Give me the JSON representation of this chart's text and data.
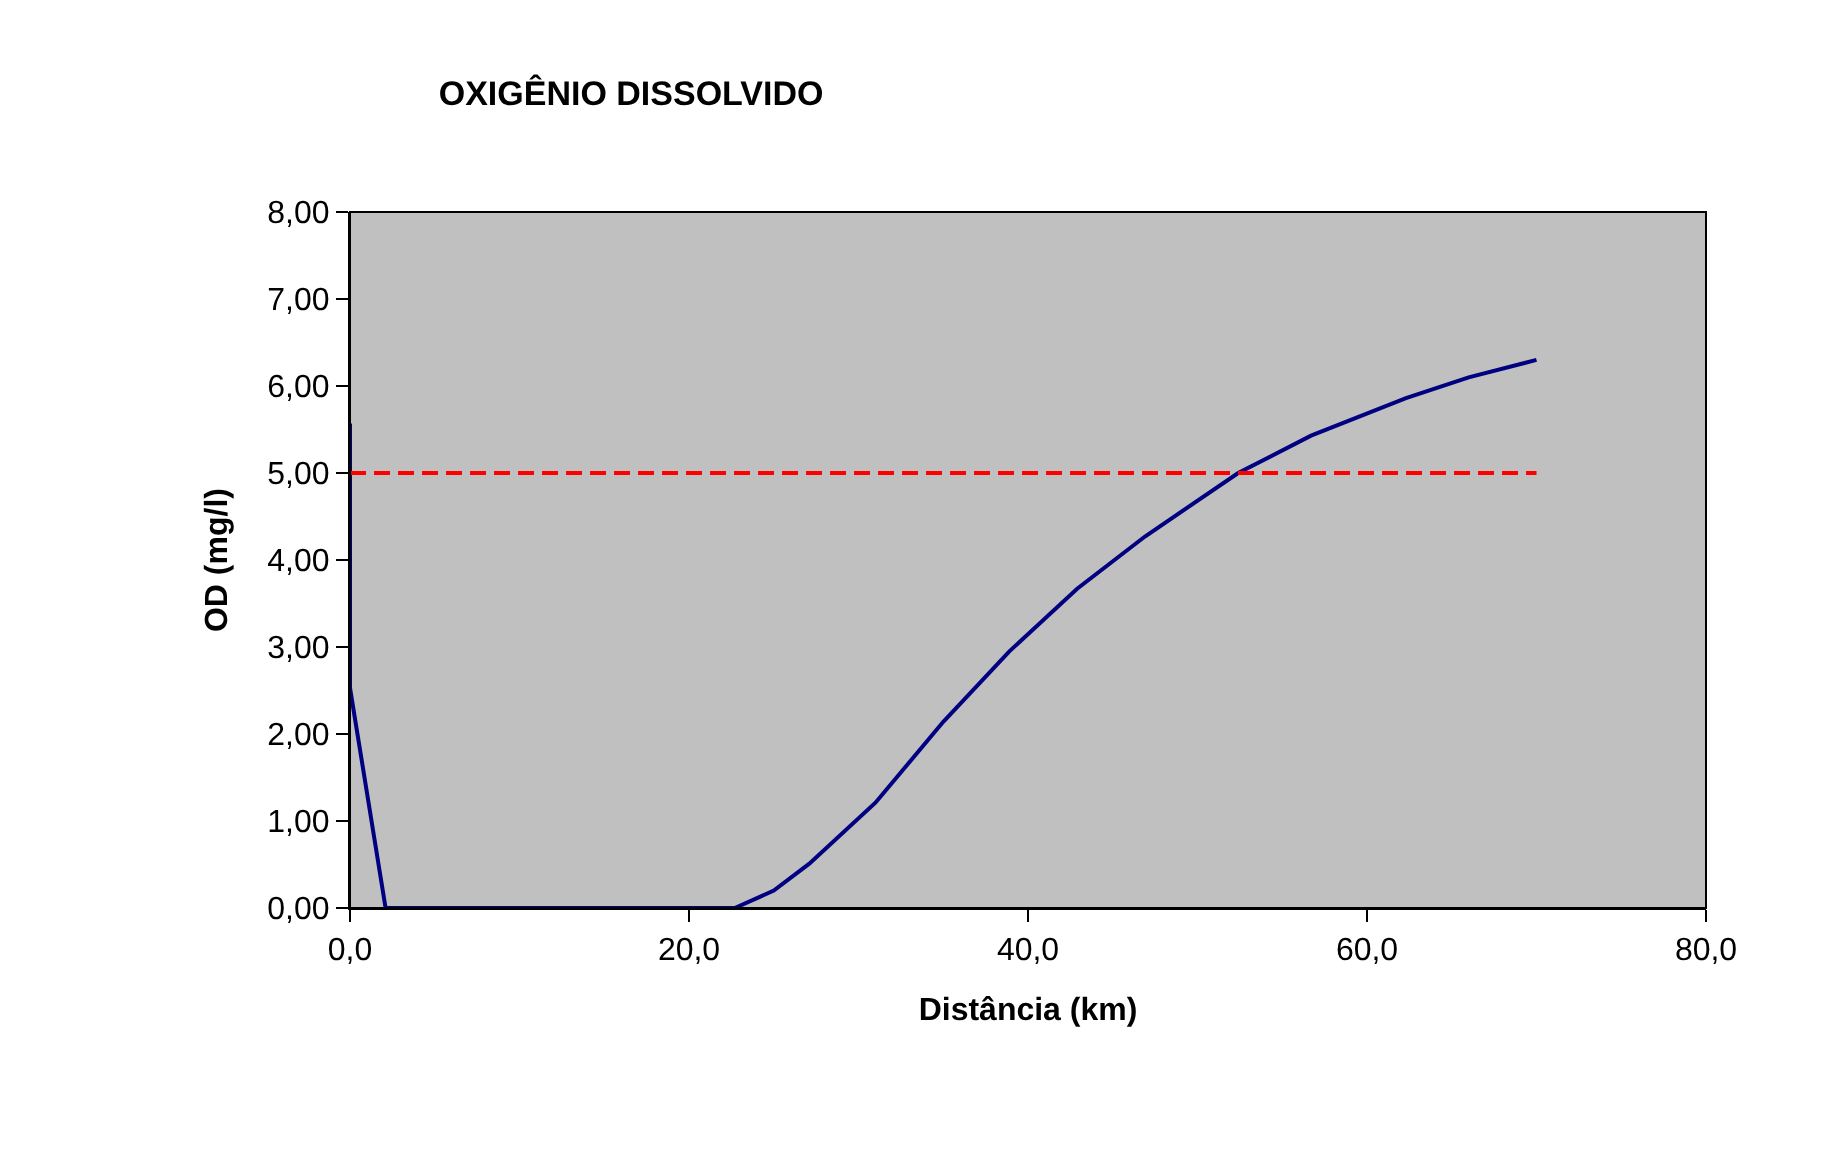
{
  "chart_data": {
    "type": "line",
    "title": "OXIGÊNIO DISSOLVIDO",
    "xlabel": "Distância (km)",
    "ylabel": "OD (mg/l)",
    "xlim": [
      0,
      80
    ],
    "xticks": [
      {
        "value": 0,
        "label": "0,0"
      },
      {
        "value": 20,
        "label": "20,0"
      },
      {
        "value": 40,
        "label": "40,0"
      },
      {
        "value": 60,
        "label": "60,0"
      },
      {
        "value": 80,
        "label": "80,0"
      }
    ],
    "ylim": [
      0,
      8
    ],
    "yticks": [
      {
        "value": 0,
        "label": "0,00"
      },
      {
        "value": 1,
        "label": "1,00"
      },
      {
        "value": 2,
        "label": "2,00"
      },
      {
        "value": 3,
        "label": "3,00"
      },
      {
        "value": 4,
        "label": "4,00"
      },
      {
        "value": 5,
        "label": "5,00"
      },
      {
        "value": 6,
        "label": "6,00"
      },
      {
        "value": 7,
        "label": "7,00"
      },
      {
        "value": 8,
        "label": "8,00"
      }
    ],
    "grid": false,
    "marker": "none",
    "series": [
      {
        "color": "#000080",
        "line_style": "solid",
        "x": [
          0,
          0,
          2.1,
          10,
          20,
          22.7,
          25,
          27.1,
          31.0,
          35.0,
          38.9,
          42.9,
          46.9,
          52.4,
          56.7,
          62.3,
          66,
          70
        ],
        "values": [
          5.57,
          2.53,
          0,
          0,
          0,
          0,
          0.2,
          0.51,
          1.21,
          2.14,
          2.95,
          3.67,
          4.27,
          5.0,
          5.43,
          5.86,
          6.1,
          6.3
        ]
      },
      {
        "color": "#ff0000",
        "line_style": "dashed",
        "x": [
          0,
          70
        ],
        "values": [
          5,
          5
        ]
      }
    ]
  }
}
